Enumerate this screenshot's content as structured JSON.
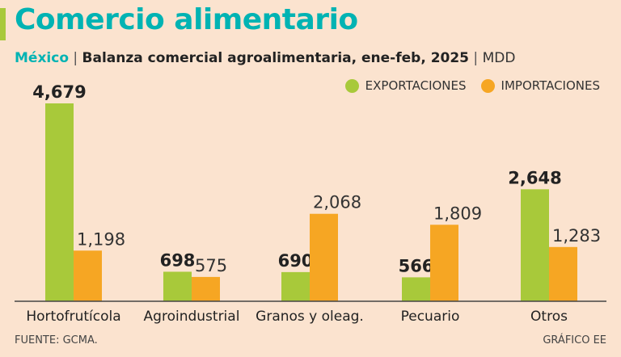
{
  "header": {
    "title": "Comercio alimentario",
    "country": "México",
    "separator": "|",
    "subtitle": "Balanza comercial agroalimentaria, ene-feb, 2025",
    "unit": "MDD"
  },
  "colors": {
    "exportaciones": "#a8c93a",
    "importaciones": "#f6a623",
    "title": "#00b3b3",
    "background": "#fbe3cf"
  },
  "chart_data": {
    "type": "bar",
    "categories": [
      "Hortofrutícola",
      "Agroindustrial",
      "Granos y oleag.",
      "Pecuario",
      "Otros"
    ],
    "series": [
      {
        "name": "EXPORTACIONES",
        "values": [
          4679,
          698,
          690,
          566,
          2648
        ],
        "labels": [
          "4,679",
          "698",
          "690",
          "566",
          "2,648"
        ]
      },
      {
        "name": "IMPORTACIONES",
        "values": [
          1198,
          575,
          2068,
          1809,
          1283
        ],
        "labels": [
          "1,198",
          "575",
          "2,068",
          "1,809",
          "1,283"
        ]
      }
    ],
    "ylim": [
      0,
      4679
    ],
    "grid": false,
    "legend_position": "top-right"
  },
  "footer": {
    "source": "FUENTE: GCMA.",
    "credit": "GRÁFICO EE"
  }
}
